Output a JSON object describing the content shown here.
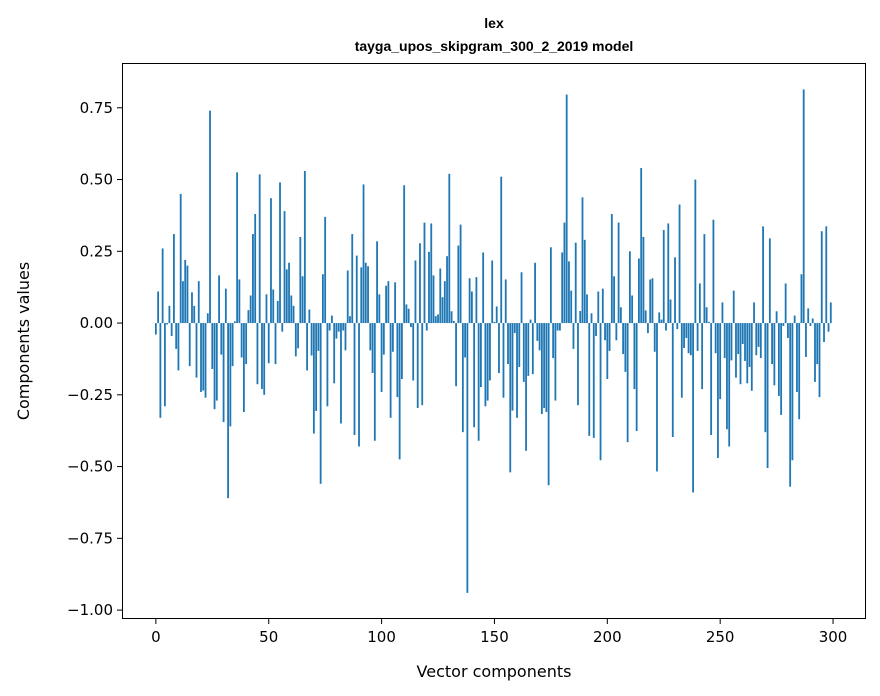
{
  "chart_data": {
    "type": "bar",
    "title": "lex",
    "subtitle": "tayga_upos_skipgram_300_2_2019 model",
    "xlabel": "Vector components",
    "ylabel": "Components values",
    "xlim": [
      -15,
      314.6
    ],
    "ylim": [
      -1.031,
      0.906
    ],
    "xticks": [
      0,
      50,
      100,
      150,
      200,
      250,
      300
    ],
    "xtick_labels": [
      "0",
      "50",
      "100",
      "150",
      "200",
      "250",
      "300"
    ],
    "yticks": [
      0.75,
      0.5,
      0.25,
      0.0,
      -0.25,
      -0.5,
      -0.75,
      -1.0
    ],
    "ytick_labels": [
      "0.75",
      "0.50",
      "0.25",
      "0.00",
      "−0.25",
      "−0.50",
      "−0.75",
      "−1.00"
    ],
    "grid": false,
    "color": "#1f77b4",
    "values": [
      -0.04,
      0.11,
      -0.33,
      0.26,
      -0.29,
      -0.005,
      0.06,
      -0.045,
      0.31,
      -0.09,
      -0.165,
      0.45,
      0.146,
      0.22,
      0.2,
      -0.15,
      0.107,
      0.06,
      -0.19,
      0.146,
      -0.24,
      -0.235,
      -0.26,
      0.034,
      0.74,
      -0.16,
      -0.3,
      -0.27,
      0.166,
      -0.11,
      -0.345,
      0.12,
      -0.61,
      -0.36,
      -0.15,
      0.006,
      0.525,
      0.152,
      -0.12,
      -0.31,
      -0.143,
      0.045,
      0.096,
      0.31,
      0.38,
      -0.213,
      0.518,
      -0.23,
      -0.25,
      0.1,
      -0.14,
      0.435,
      0.117,
      -0.143,
      0.077,
      0.49,
      -0.03,
      0.39,
      0.187,
      0.21,
      0.096,
      0.06,
      -0.116,
      -0.088,
      0.3,
      0.163,
      0.53,
      -0.165,
      0.047,
      -0.113,
      -0.385,
      -0.306,
      -0.097,
      -0.56,
      0.17,
      0.37,
      -0.29,
      -0.026,
      0.026,
      -0.21,
      -0.054,
      -0.03,
      -0.35,
      -0.026,
      -0.095,
      0.183,
      0.024,
      0.31,
      -0.39,
      0.235,
      -0.43,
      0.194,
      0.483,
      0.21,
      0.198,
      -0.095,
      -0.174,
      -0.41,
      0.285,
      0.1,
      -0.24,
      -0.11,
      0.13,
      0.146,
      -0.33,
      -0.1,
      0.142,
      -0.258,
      -0.475,
      -0.195,
      0.48,
      0.065,
      0.05,
      -0.014,
      -0.2,
      0.218,
      -0.296,
      0.278,
      -0.286,
      0.35,
      -0.026,
      0.248,
      0.347,
      0.166,
      0.024,
      0.03,
      0.19,
      0.09,
      0.146,
      0.233,
      0.52,
      0.041,
      0.007,
      -0.22,
      0.27,
      0.343,
      -0.38,
      -0.12,
      -0.94,
      0.156,
      0.11,
      -0.363,
      0.16,
      -0.41,
      -0.223,
      0.246,
      -0.29,
      -0.27,
      -0.2,
      0.218,
      0.004,
      0.058,
      -0.174,
      0.51,
      -0.26,
      0.152,
      -0.143,
      -0.52,
      -0.305,
      -0.035,
      -0.33,
      -0.153,
      0.177,
      -0.205,
      -0.445,
      -0.184,
      0.012,
      -0.178,
      0.21,
      -0.062,
      -0.095,
      -0.317,
      -0.296,
      -0.31,
      -0.565,
      0.264,
      -0.122,
      -0.27,
      -0.026,
      -0.026,
      0.246,
      0.35,
      0.796,
      0.215,
      0.113,
      -0.09,
      0.28,
      -0.286,
      0.042,
      0.438,
      0.29,
      0.1,
      -0.393,
      0.034,
      -0.4,
      -0.045,
      0.11,
      -0.478,
      0.12,
      -0.06,
      -0.195,
      -0.097,
      0.38,
      0.163,
      -0.06,
      0.35,
      0.055,
      -0.108,
      -0.17,
      -0.415,
      0.25,
      0.096,
      -0.23,
      -0.376,
      0.225,
      0.54,
      0.3,
      0.044,
      -0.035,
      0.152,
      0.156,
      -0.1,
      -0.517,
      0.037,
      0.012,
      0.324,
      -0.026,
      0.347,
      0.082,
      -0.397,
      0.229,
      -0.021,
      0.413,
      -0.26,
      -0.087,
      -0.052,
      -0.105,
      -0.112,
      -0.59,
      0.5,
      -0.097,
      0.138,
      -0.23,
      0.31,
      0.055,
      0.004,
      -0.39,
      0.36,
      -0.105,
      -0.47,
      -0.265,
      0.072,
      -0.122,
      -0.37,
      -0.43,
      -0.13,
      0.113,
      -0.19,
      -0.108,
      -0.213,
      -0.073,
      -0.132,
      -0.21,
      -0.153,
      -0.236,
      0.072,
      -0.112,
      -0.083,
      -0.122,
      0.337,
      -0.38,
      -0.505,
      0.295,
      -0.143,
      -0.217,
      0.041,
      -0.254,
      -0.32,
      -0.01,
      0.138,
      -0.052,
      -0.57,
      -0.478,
      0.026,
      -0.24,
      -0.335,
      0.17,
      0.814,
      -0.118,
      0.051,
      -0.01,
      0.016,
      -0.205,
      -0.143,
      -0.258,
      0.32,
      -0.066,
      0.337,
      -0.03,
      0.072
    ]
  }
}
